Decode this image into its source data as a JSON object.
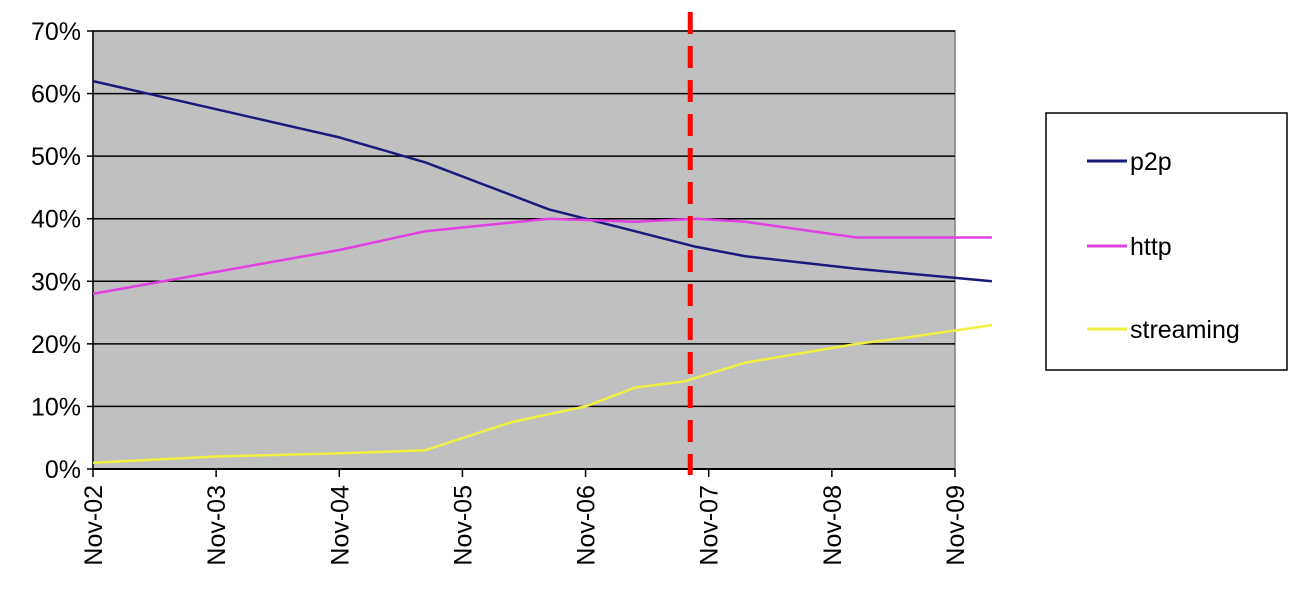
{
  "chart_data": {
    "type": "line",
    "title": "",
    "xlabel": "",
    "ylabel": "",
    "categories": [
      "Nov-02",
      "Nov-03",
      "Nov-04",
      "Nov-05",
      "Nov-06",
      "Nov-07",
      "Nov-08",
      "Nov-09"
    ],
    "ylim": [
      0,
      70
    ],
    "yticks": [
      "0%",
      "10%",
      "20%",
      "30%",
      "40%",
      "50%",
      "60%",
      "70%"
    ],
    "grid": true,
    "plot_background": "#c0c0c0",
    "legend_position": "right",
    "series": [
      {
        "name": "p2p",
        "color": "#1a1a7a",
        "points": [
          [
            0,
            62
          ],
          [
            1,
            57.5
          ],
          [
            2,
            53
          ],
          [
            2.7,
            49
          ],
          [
            3.7,
            41.5
          ],
          [
            4.4,
            38
          ],
          [
            4.9,
            35.5
          ],
          [
            5.3,
            34
          ],
          [
            6.2,
            32
          ],
          [
            7.3,
            30
          ]
        ]
      },
      {
        "name": "http",
        "color": "#e040e0",
        "points": [
          [
            0,
            28
          ],
          [
            1,
            31.5
          ],
          [
            2,
            35
          ],
          [
            2.7,
            38
          ],
          [
            3.7,
            40
          ],
          [
            4.4,
            39.5
          ],
          [
            4.9,
            40
          ],
          [
            5.3,
            39.5
          ],
          [
            6.2,
            37
          ],
          [
            7.3,
            37
          ]
        ]
      },
      {
        "name": "streaming",
        "color": "#f0f040",
        "points": [
          [
            0,
            1
          ],
          [
            1,
            2
          ],
          [
            2,
            2.5
          ],
          [
            2.7,
            3
          ],
          [
            3.4,
            7.5
          ],
          [
            4,
            10
          ],
          [
            4.4,
            13
          ],
          [
            4.8,
            14
          ],
          [
            5.3,
            17
          ],
          [
            6.2,
            20
          ],
          [
            6.6,
            21
          ],
          [
            7.3,
            23
          ]
        ]
      }
    ],
    "annotations": [
      {
        "type": "vertical-dashed-line",
        "x": 4.85,
        "color": "#ff0000"
      }
    ]
  }
}
